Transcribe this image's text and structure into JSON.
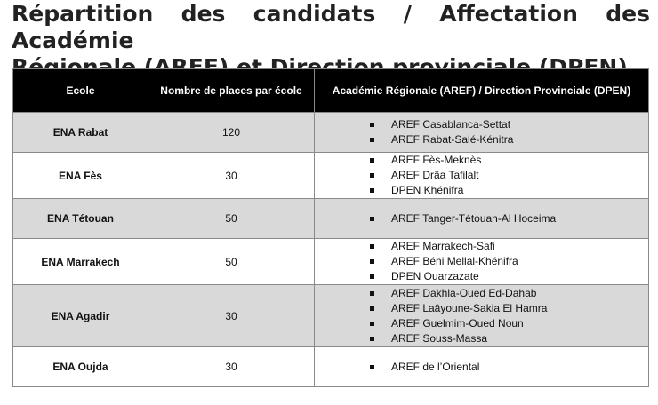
{
  "title": {
    "line1": "Répartition des candidats / Affectation des Académie",
    "line2": "Régionale (AREF) et Direction provinciale (DPEN)"
  },
  "table": {
    "headers": [
      "Ecole",
      "Nombre de places par école",
      "Académie Régionale (AREF) / Direction Provinciale (DPEN)"
    ],
    "rows": [
      {
        "ecole": "ENA Rabat",
        "places": "120",
        "aref": [
          "AREF Casablanca-Settat",
          "AREF Rabat-Salé-Kénitra"
        ]
      },
      {
        "ecole": "ENA Fès",
        "places": "30",
        "aref": [
          "AREF Fès-Meknès",
          "AREF Drâa Tafilalt",
          "DPEN Khénifra"
        ]
      },
      {
        "ecole": "ENA Tétouan",
        "places": "50",
        "aref": [
          "AREF Tanger-Tétouan-Al Hoceima"
        ]
      },
      {
        "ecole": "ENA Marrakech",
        "places": "50",
        "aref": [
          "AREF Marrakech-Safi",
          "AREF Béni Mellal-Khénifra",
          "DPEN Ouarzazate"
        ]
      },
      {
        "ecole": "ENA Agadir",
        "places": "30",
        "aref": [
          "AREF Dakhla-Oued Ed-Dahab",
          "AREF Laâyoune-Sakia El Hamra",
          "AREF Guelmim-Oued Noun",
          "AREF Souss-Massa"
        ]
      },
      {
        "ecole": "ENA Oujda",
        "places": "30",
        "aref": [
          "AREF de l’Oriental"
        ]
      }
    ]
  },
  "colors": {
    "header_bg": "#000000",
    "shade_bg": "#d9d9d9"
  }
}
